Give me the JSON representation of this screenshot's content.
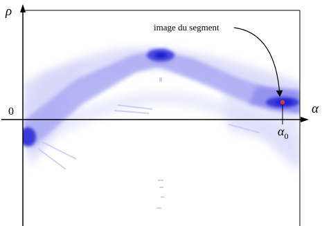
{
  "diagram": {
    "axes": {
      "vertical_label": "ρ",
      "horizontal_label": "α",
      "origin_label": "0",
      "tick_label_main": "α",
      "tick_label_sub": "0"
    },
    "annotation": {
      "text": "image du segment"
    },
    "colors": {
      "band_light": "#dcdcfb",
      "band_mid": "#a9a9f3",
      "band_dark": "#4a4ae0",
      "band_core": "#1c1ccf",
      "highlight_point": "#d23a3a",
      "frame": "#000000"
    }
  }
}
